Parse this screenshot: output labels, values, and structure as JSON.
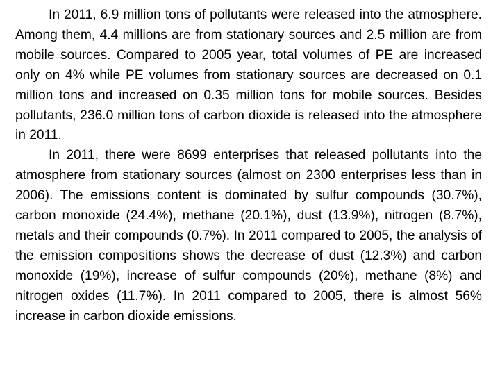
{
  "document": {
    "paragraphs": [
      "In 2011, 6.9 million tons of pollutants were released into the atmosphere. Among them, 4.4 millions are from stationary sources and 2.5 million are from mobile sources. Compared to 2005 year, total volumes of PE are increased only on 4% while PE volumes from stationary sources are decreased on 0.1 million tons and increased on 0.35 million tons for mobile sources. Besides pollutants, 236.0 million tons of carbon dioxide is released into the atmosphere in 2011.",
      "In 2011, there were 8699 enterprises that released pollutants into the atmosphere from stationary sources (almost on 2300 enterprises less than in 2006). The emissions content is dominated by sulfur compounds (30.7%), carbon monoxide (24.4%), methane (20.1%), dust (13.9%), nitrogen (8.7%), metals and their compounds (0.7%). In 2011 compared to 2005, the analysis of the emission compositions shows the decrease of dust (12.3%) and carbon monoxide (19%), increase of sulfur compounds (20%), methane (8%) and nitrogen oxides (11.7%). In 2011 compared to 2005, there is almost 56% increase in carbon dioxide emissions."
    ]
  }
}
